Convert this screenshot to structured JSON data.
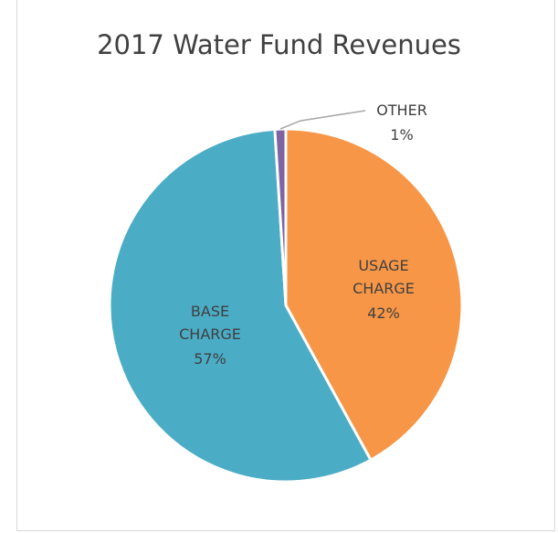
{
  "chart_data": {
    "type": "pie",
    "title": "2017 Water Fund Revenues",
    "categories": [
      "USAGE CHARGE",
      "BASE CHARGE",
      "OTHER"
    ],
    "values": [
      42,
      57,
      1
    ],
    "value_labels": [
      "42%",
      "57%",
      "1%"
    ],
    "colors": [
      "#f79646",
      "#4bacc6",
      "#8064a2"
    ]
  }
}
